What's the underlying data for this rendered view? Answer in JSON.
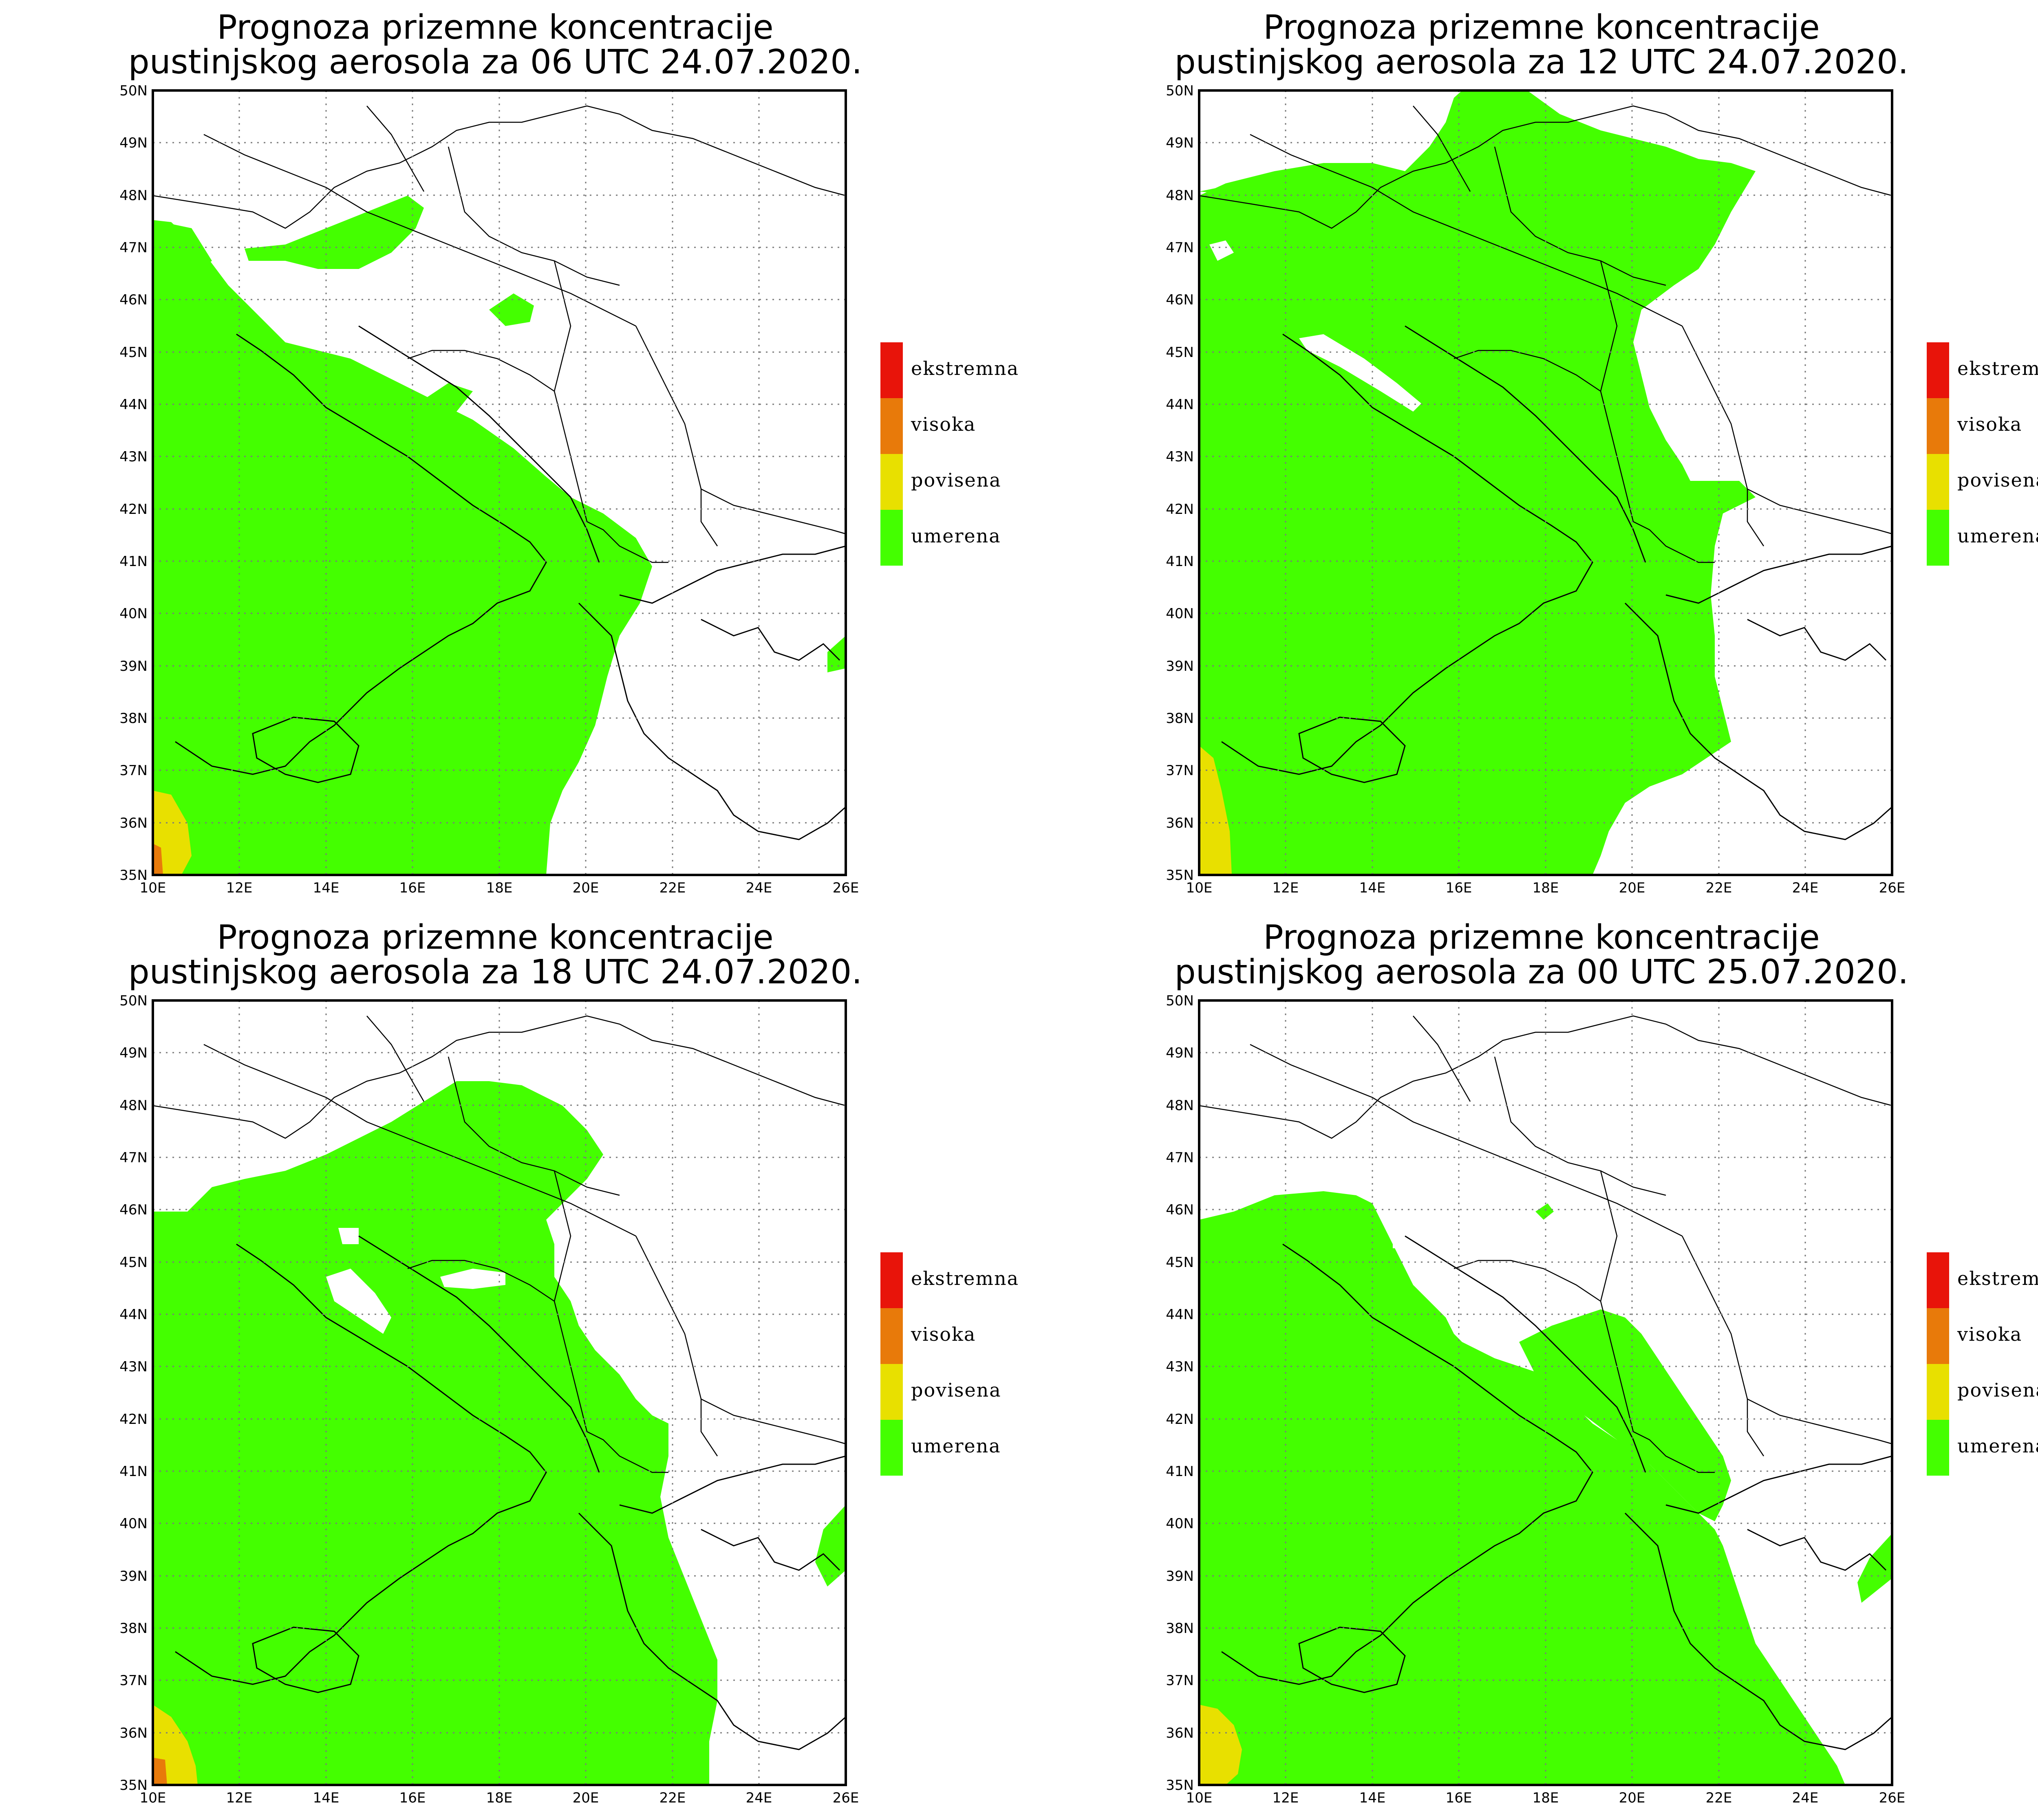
{
  "map": {
    "title_line1": "Prognoza prizemne koncentracije",
    "lon_ticks": [
      "10E",
      "12E",
      "14E",
      "16E",
      "18E",
      "20E",
      "22E",
      "24E",
      "26E"
    ],
    "lat_ticks": [
      "35N",
      "36N",
      "37N",
      "38N",
      "39N",
      "40N",
      "41N",
      "42N",
      "43N",
      "44N",
      "45N",
      "46N",
      "47N",
      "48N",
      "49N",
      "50N"
    ],
    "lon_range": [
      10,
      26
    ],
    "lat_range": [
      35,
      50
    ],
    "legend": [
      {
        "label": "ekstremna",
        "color": "#e8140a"
      },
      {
        "label": "visoka",
        "color": "#e87a0a"
      },
      {
        "label": "povisena",
        "color": "#e8e000"
      },
      {
        "label": "umerena",
        "color": "#44ff00"
      }
    ]
  },
  "panels": [
    {
      "title_line2": "pustinjskog aerosola za 06 UTC 24.07.2020."
    },
    {
      "title_line2": "pustinjskog aerosola za 12 UTC 24.07.2020."
    },
    {
      "title_line2": "pustinjskog aerosola za 18 UTC 24.07.2020."
    },
    {
      "title_line2": "pustinjskog aerosola za 00 UTC 25.07.2020."
    }
  ]
}
